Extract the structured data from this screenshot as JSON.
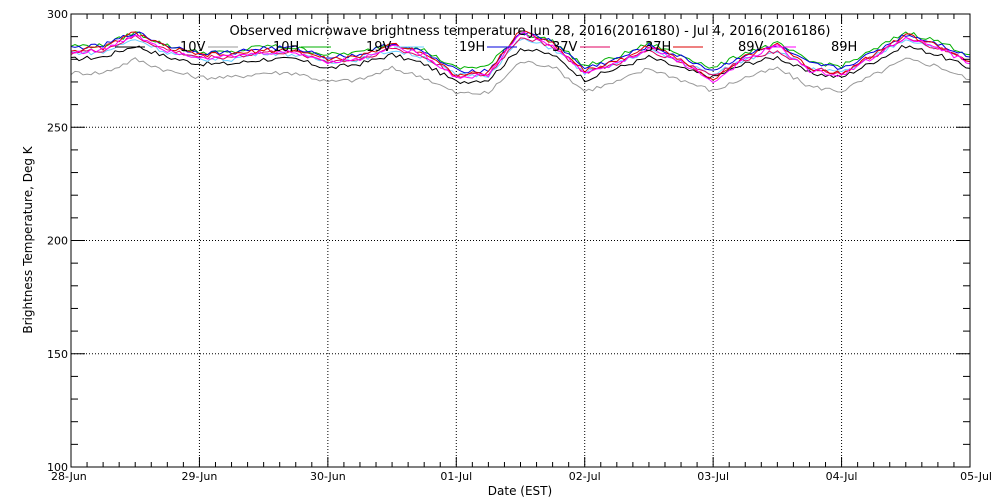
{
  "chart_data": {
    "type": "line",
    "title": "Observed microwave brightness temperature  Jun 28, 2016(2016180) - Jul  4, 2016(2016186)",
    "xlabel": "Date (EST)",
    "ylabel": "Brightness Temperature, Deg K",
    "xlim": [
      "2016-06-28",
      "2016-07-05"
    ],
    "ylim": [
      100,
      300
    ],
    "grid": true,
    "legend_position": "top",
    "x_tick_labels": [
      "28-Jun",
      "29-Jun",
      "30-Jun",
      "01-Jul",
      "02-Jul",
      "03-Jul",
      "04-Jul",
      "05-Jul"
    ],
    "y_tick_labels": [
      "100",
      "150",
      "200",
      "250",
      "300"
    ],
    "x": [
      "2016-06-28 00:00",
      "2016-06-28 06:00",
      "2016-06-28 12:00",
      "2016-06-28 18:00",
      "2016-06-29 00:00",
      "2016-06-29 06:00",
      "2016-06-29 12:00",
      "2016-06-29 18:00",
      "2016-06-30 00:00",
      "2016-06-30 06:00",
      "2016-06-30 12:00",
      "2016-06-30 18:00",
      "2016-07-01 00:00",
      "2016-07-01 06:00",
      "2016-07-01 12:00",
      "2016-07-01 18:00",
      "2016-07-02 00:00",
      "2016-07-02 06:00",
      "2016-07-02 12:00",
      "2016-07-02 18:00",
      "2016-07-03 00:00",
      "2016-07-03 06:00",
      "2016-07-03 12:00",
      "2016-07-03 18:00",
      "2016-07-04 00:00",
      "2016-07-04 06:00",
      "2016-07-04 12:00",
      "2016-07-04 18:00",
      "2016-07-05 00:00"
    ],
    "series": [
      {
        "name": "10V",
        "color": "#000000",
        "values": [
          280,
          281,
          286,
          281,
          278,
          278,
          280,
          280,
          276,
          278,
          282,
          278,
          270,
          271,
          285,
          282,
          271,
          276,
          281,
          276,
          272,
          278,
          281,
          274,
          272,
          279,
          286,
          282,
          276
        ]
      },
      {
        "name": "10H",
        "color": "#999999",
        "values": [
          274,
          274,
          280,
          275,
          272,
          272,
          274,
          274,
          270,
          271,
          276,
          272,
          265,
          265,
          279,
          277,
          266,
          270,
          276,
          271,
          266,
          272,
          276,
          268,
          266,
          273,
          280,
          277,
          271
        ]
      },
      {
        "name": "19V",
        "color": "#00b000",
        "values": [
          286,
          286,
          292,
          286,
          283,
          283,
          286,
          285,
          282,
          283,
          287,
          284,
          276,
          277,
          292,
          288,
          277,
          281,
          287,
          282,
          276,
          283,
          287,
          279,
          277,
          284,
          292,
          288,
          282
        ]
      },
      {
        "name": "19H",
        "color": "#66ccff",
        "values": [
          283,
          283,
          289,
          283,
          280,
          280,
          283,
          282,
          279,
          280,
          284,
          281,
          273,
          273,
          289,
          285,
          274,
          278,
          284,
          279,
          273,
          280,
          284,
          276,
          274,
          281,
          289,
          285,
          279
        ]
      },
      {
        "name": "37V",
        "color": "#0000dd",
        "values": [
          285,
          286,
          292,
          286,
          283,
          283,
          285,
          285,
          281,
          282,
          287,
          283,
          275,
          275,
          292,
          288,
          276,
          280,
          286,
          281,
          275,
          282,
          286,
          278,
          276,
          283,
          291,
          287,
          281
        ]
      },
      {
        "name": "37H",
        "color": "#e00060",
        "values": [
          283,
          284,
          290,
          284,
          281,
          281,
          283,
          283,
          279,
          280,
          285,
          281,
          273,
          273,
          290,
          286,
          274,
          278,
          284,
          279,
          273,
          280,
          284,
          276,
          274,
          281,
          289,
          285,
          279
        ]
      },
      {
        "name": "89V",
        "color": "#dd0000",
        "values": [
          284,
          285,
          292,
          285,
          282,
          282,
          284,
          284,
          280,
          281,
          287,
          283,
          273,
          274,
          293,
          287,
          275,
          279,
          286,
          280,
          271,
          281,
          287,
          276,
          274,
          282,
          291,
          286,
          279
        ]
      },
      {
        "name": "89H",
        "color": "#ff00ff",
        "values": [
          283,
          284,
          291,
          284,
          281,
          281,
          283,
          283,
          279,
          280,
          286,
          282,
          272,
          273,
          292,
          286,
          274,
          278,
          285,
          279,
          270,
          280,
          286,
          275,
          273,
          281,
          290,
          285,
          278
        ]
      }
    ]
  }
}
